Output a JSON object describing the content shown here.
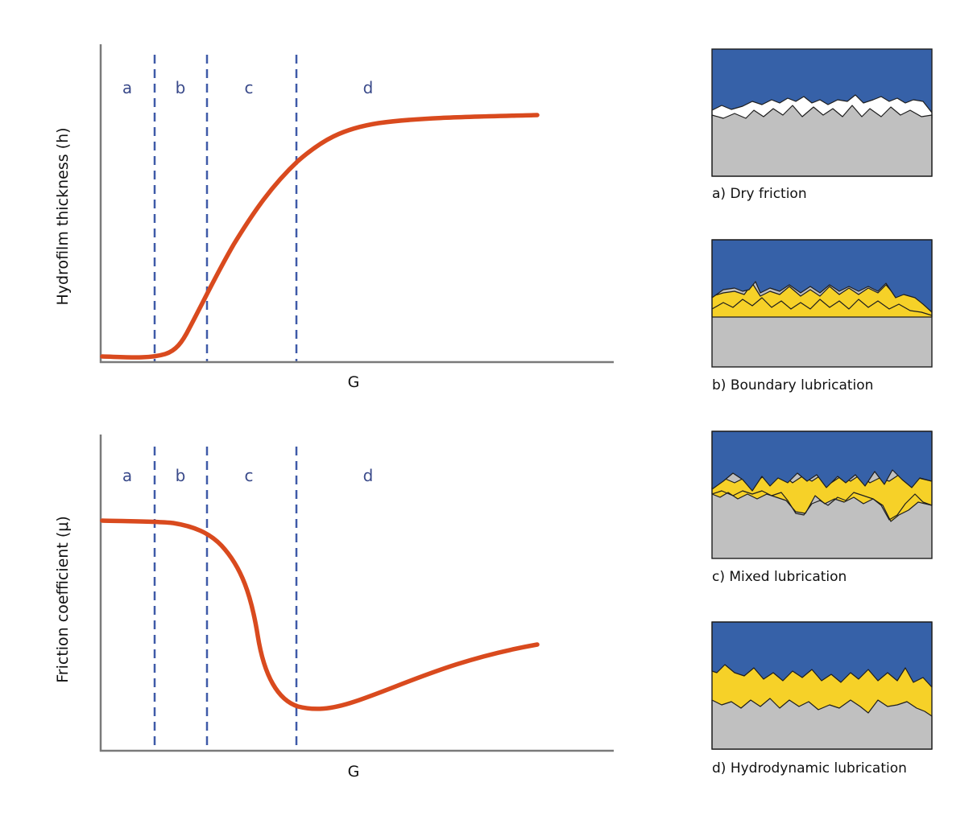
{
  "colors": {
    "curve": "#d94a1e",
    "divider": "#3f5aa8",
    "axis": "#7a7a7a",
    "upper_surface": "#3661a8",
    "lubricant": "#f6d128",
    "lower_surface": "#c0c0c0",
    "outline": "#1e1e1e",
    "region_label": "#3a4a8a"
  },
  "top_chart": {
    "ylabel": "Hydrofilm thickness (h)",
    "xlabel": "G",
    "regions": [
      "a",
      "b",
      "c",
      "d"
    ]
  },
  "bottom_chart": {
    "ylabel": "Friction coefficient (μ)",
    "xlabel": "G",
    "regions": [
      "a",
      "b",
      "c",
      "d"
    ]
  },
  "panels": [
    {
      "key": "a",
      "caption": "a) Dry friction"
    },
    {
      "key": "b",
      "caption": "b) Boundary lubrication"
    },
    {
      "key": "c",
      "caption": "c) Mixed lubrication"
    },
    {
      "key": "d",
      "caption": "d) Hydrodynamic lubrication"
    }
  ]
}
